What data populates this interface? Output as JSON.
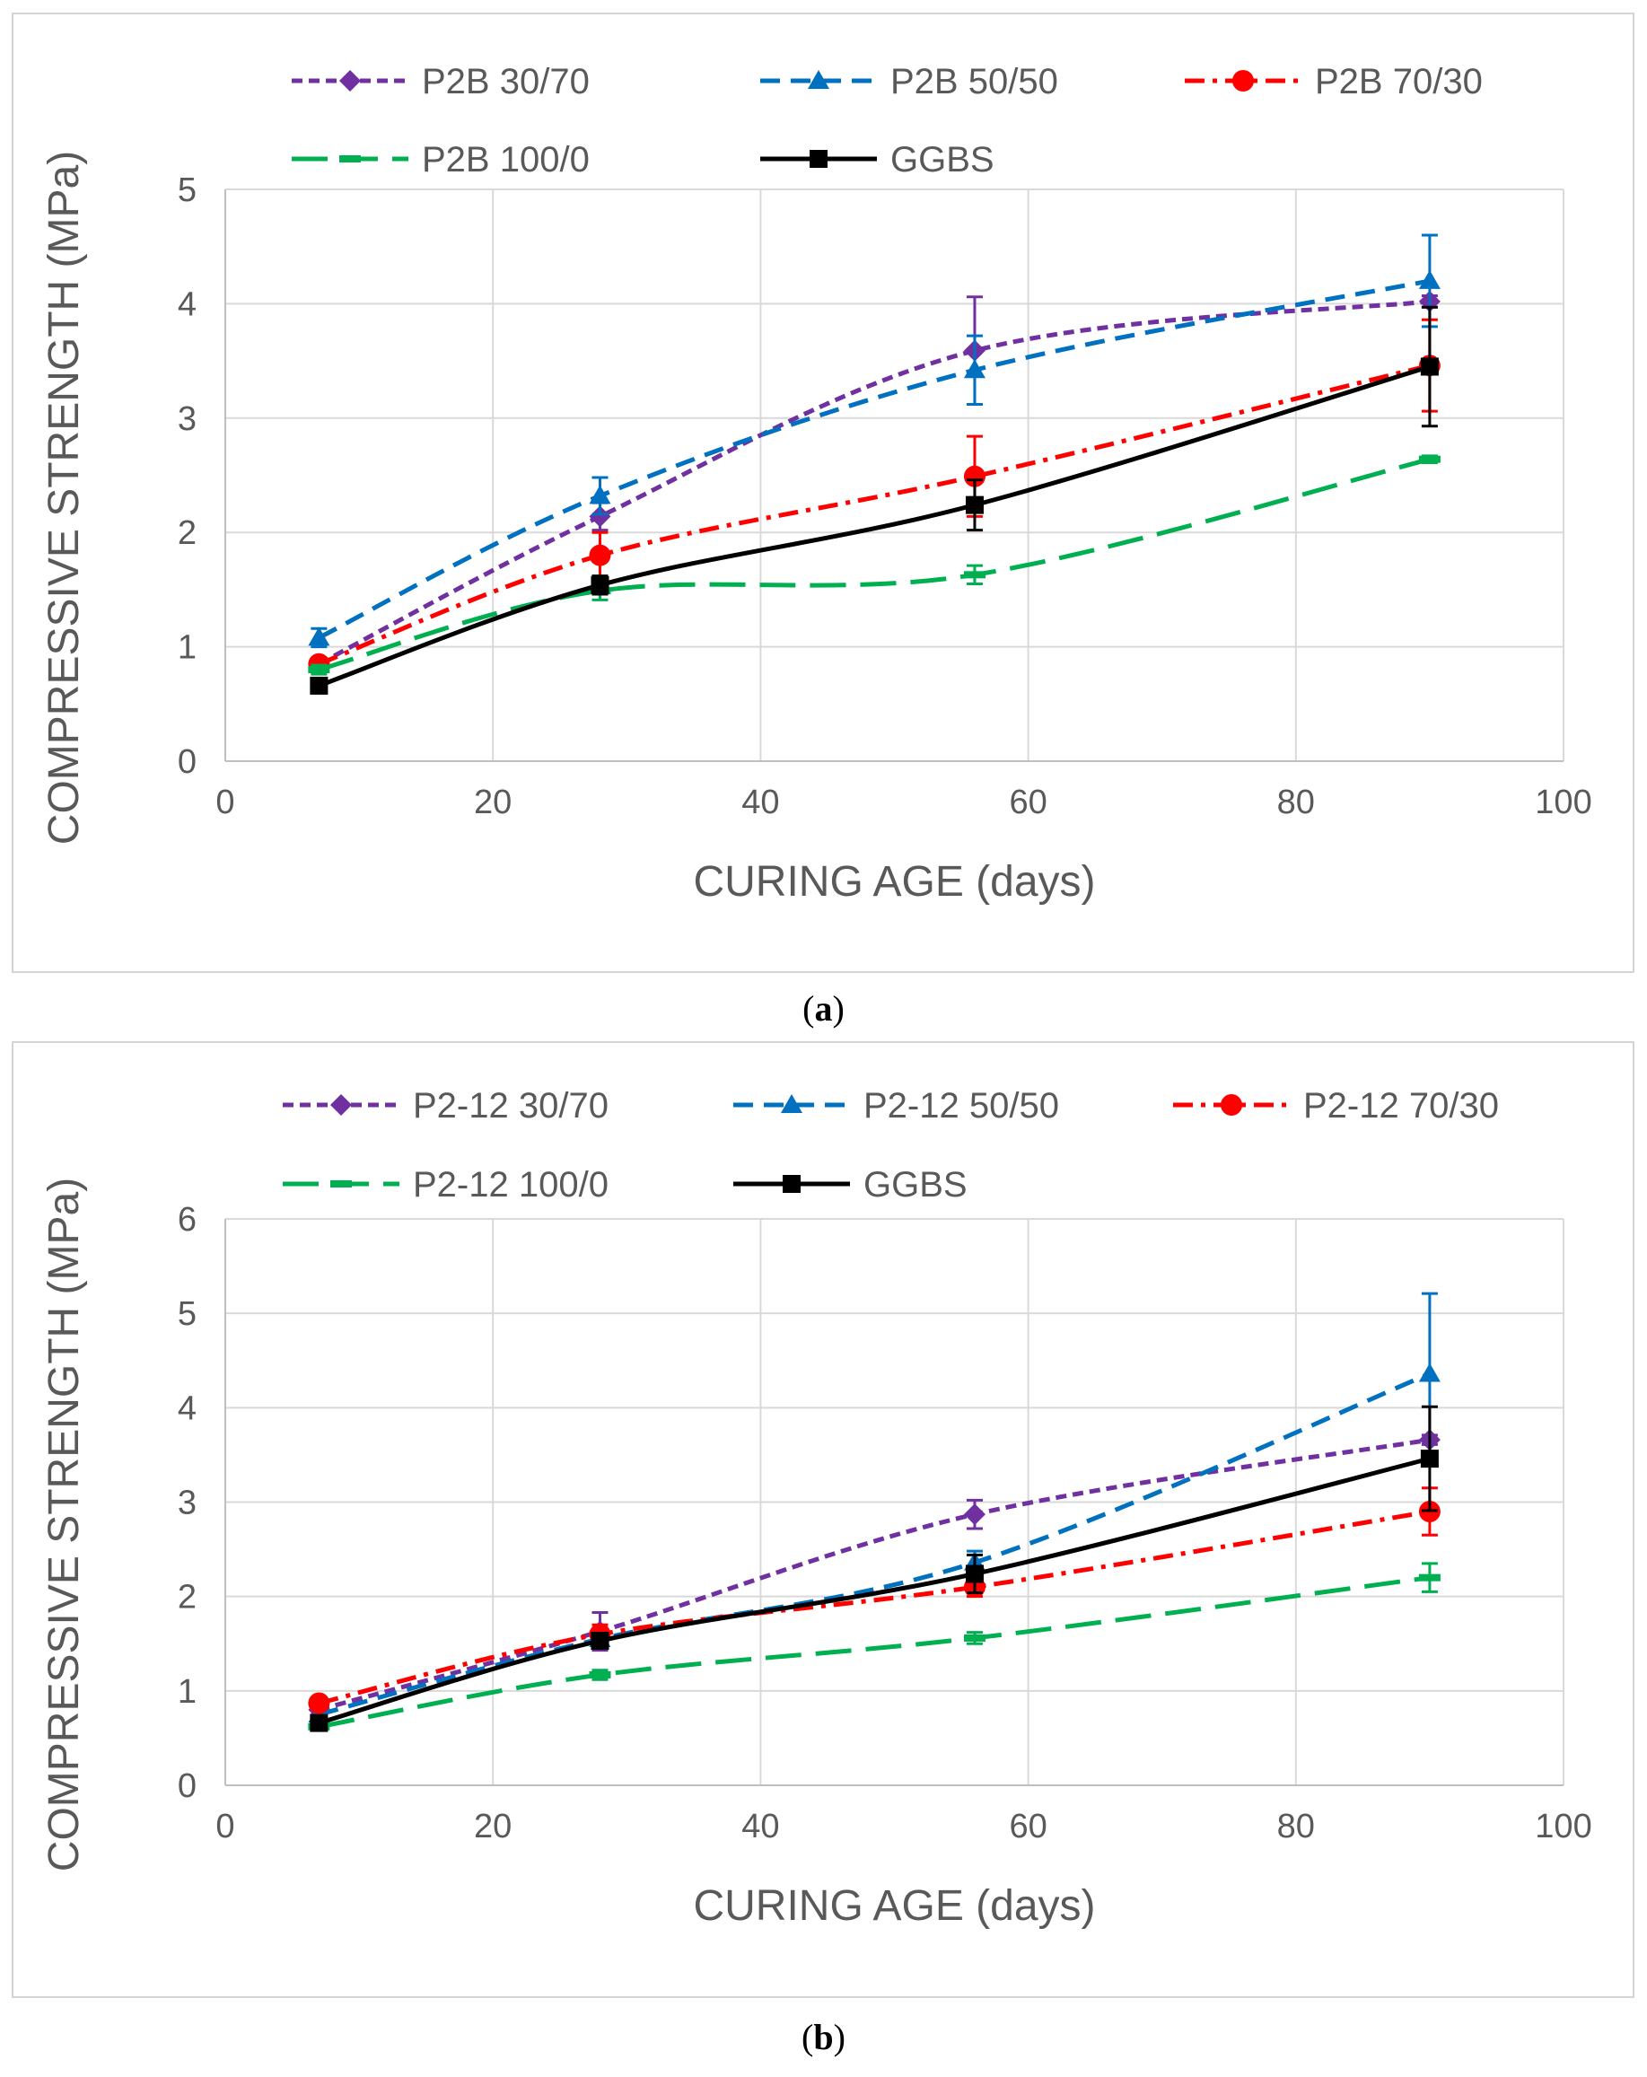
{
  "chart_data": [
    {
      "type": "line",
      "panel_label": "a",
      "xlabel": "CURING AGE (days)",
      "ylabel": "COMPRESSIVE STRENGTH (MPa)",
      "xlim": [
        0,
        100
      ],
      "ylim": [
        0,
        5
      ],
      "xticks": [
        0,
        20,
        40,
        60,
        80,
        100
      ],
      "yticks": [
        0,
        1,
        2,
        3,
        4,
        5
      ],
      "grid": true,
      "legend_position": "top",
      "x": [
        7,
        28,
        56,
        90
      ],
      "series": [
        {
          "name": "P2B 30/70",
          "values": [
            0.85,
            2.14,
            3.59,
            4.02
          ],
          "errors": [
            0.05,
            0.12,
            0.47,
            0.05
          ],
          "color": "#7030a0",
          "dash": "short-dash",
          "marker": "diamond"
        },
        {
          "name": "P2B 50/50",
          "values": [
            1.08,
            2.32,
            3.42,
            4.2
          ],
          "errors": [
            0.08,
            0.16,
            0.3,
            0.4
          ],
          "color": "#0070c0",
          "dash": "dash",
          "marker": "triangle"
        },
        {
          "name": "P2B 70/30",
          "values": [
            0.85,
            1.8,
            2.49,
            3.46
          ],
          "errors": [
            0.05,
            0.2,
            0.35,
            0.4
          ],
          "color": "#ff0000",
          "dash": "dash-dot",
          "marker": "circle"
        },
        {
          "name": "P2B 100/0",
          "values": [
            0.8,
            1.49,
            1.63,
            2.64
          ],
          "errors": [
            0.04,
            0.08,
            0.08,
            0.03
          ],
          "color": "#00b050",
          "dash": "long-dash",
          "marker": "dash"
        },
        {
          "name": "GGBS",
          "values": [
            0.66,
            1.54,
            2.24,
            3.45
          ],
          "errors": [
            0.04,
            0.08,
            0.22,
            0.52
          ],
          "color": "#000000",
          "dash": "solid",
          "marker": "square"
        }
      ]
    },
    {
      "type": "line",
      "panel_label": "b",
      "xlabel": "CURING AGE (days)",
      "ylabel": "COMPRESSIVE STRENGTH (MPa)",
      "xlim": [
        0,
        100
      ],
      "ylim": [
        0,
        6
      ],
      "xticks": [
        0,
        20,
        40,
        60,
        80,
        100
      ],
      "yticks": [
        0,
        1,
        2,
        3,
        4,
        5,
        6
      ],
      "grid": true,
      "legend_position": "top",
      "x": [
        7,
        28,
        56,
        90
      ],
      "series": [
        {
          "name": "P2-12 30/70",
          "values": [
            0.8,
            1.63,
            2.87,
            3.66
          ],
          "errors": [
            0.05,
            0.2,
            0.15,
            0.05
          ],
          "color": "#7030a0",
          "dash": "short-dash",
          "marker": "diamond"
        },
        {
          "name": "P2-12 50/50",
          "values": [
            0.75,
            1.55,
            2.36,
            4.36
          ],
          "errors": [
            0.05,
            0.1,
            0.12,
            0.85
          ],
          "color": "#0070c0",
          "dash": "dash",
          "marker": "triangle"
        },
        {
          "name": "P2-12 70/30",
          "values": [
            0.87,
            1.6,
            2.1,
            2.9
          ],
          "errors": [
            0.05,
            0.1,
            0.1,
            0.25
          ],
          "color": "#ff0000",
          "dash": "dash-dot",
          "marker": "circle"
        },
        {
          "name": "P2-12 100/0",
          "values": [
            0.62,
            1.17,
            1.56,
            2.2
          ],
          "errors": [
            0.04,
            0.05,
            0.06,
            0.15
          ],
          "color": "#00b050",
          "dash": "long-dash",
          "marker": "dash"
        },
        {
          "name": "GGBS",
          "values": [
            0.66,
            1.53,
            2.24,
            3.46
          ],
          "errors": [
            0.04,
            0.08,
            0.2,
            0.55
          ],
          "color": "#000000",
          "dash": "solid",
          "marker": "square"
        }
      ]
    }
  ],
  "captions": {
    "a": "a",
    "b": "b"
  }
}
